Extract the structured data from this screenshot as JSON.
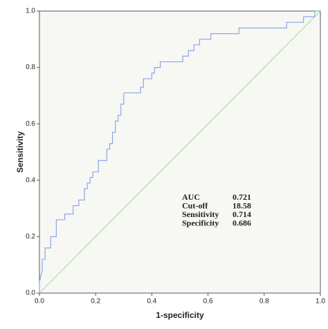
{
  "chart_data": {
    "type": "line",
    "xlabel": "1-specificity",
    "ylabel": "Sensitivity",
    "xlim": [
      0,
      1
    ],
    "ylim": [
      0,
      1
    ],
    "xticks": [
      {
        "value": 0,
        "label": "0.0"
      },
      0.2,
      0.4,
      0.6,
      0.8,
      {
        "value": 1,
        "label": "1.0"
      }
    ],
    "yticks": [
      {
        "value": 0,
        "label": "0.0"
      },
      0.2,
      0.4,
      0.6,
      0.8,
      {
        "value": 1,
        "label": "1.0"
      }
    ],
    "series": [
      {
        "color": "#8aa6e8",
        "x": [
          0,
          0,
          0.01,
          0.01,
          0.02,
          0.02,
          0.04,
          0.04,
          0.06,
          0.06,
          0.09,
          0.09,
          0.12,
          0.12,
          0.14,
          0.14,
          0.16,
          0.16,
          0.17,
          0.17,
          0.18,
          0.18,
          0.19,
          0.19,
          0.21,
          0.21,
          0.24,
          0.24,
          0.25,
          0.25,
          0.26,
          0.26,
          0.27,
          0.27,
          0.28,
          0.28,
          0.29,
          0.29,
          0.3,
          0.3,
          0.36,
          0.36,
          0.37,
          0.37,
          0.4,
          0.4,
          0.41,
          0.41,
          0.43,
          0.43,
          0.51,
          0.51,
          0.53,
          0.53,
          0.55,
          0.55,
          0.57,
          0.57,
          0.61,
          0.61,
          0.71,
          0.71,
          0.88,
          0.88,
          0.94,
          0.94,
          0.98,
          0.98,
          1
        ],
        "values": [
          0,
          0.04,
          0.08,
          0.12,
          0.12,
          0.16,
          0.16,
          0.2,
          0.2,
          0.26,
          0.26,
          0.28,
          0.28,
          0.31,
          0.31,
          0.33,
          0.33,
          0.37,
          0.37,
          0.39,
          0.39,
          0.41,
          0.41,
          0.43,
          0.43,
          0.47,
          0.47,
          0.51,
          0.51,
          0.53,
          0.53,
          0.57,
          0.57,
          0.61,
          0.61,
          0.63,
          0.63,
          0.67,
          0.67,
          0.71,
          0.71,
          0.73,
          0.73,
          0.76,
          0.76,
          0.78,
          0.78,
          0.8,
          0.8,
          0.82,
          0.82,
          0.84,
          0.84,
          0.86,
          0.86,
          0.88,
          0.88,
          0.9,
          0.9,
          0.92,
          0.92,
          0.94,
          0.94,
          0.96,
          0.96,
          0.98,
          0.98,
          1,
          1
        ]
      },
      {
        "color": "#a8e0a0",
        "x": [
          0,
          1
        ],
        "values": [
          0,
          1
        ]
      }
    ],
    "annotation": [
      {
        "label": "AUC",
        "value": 0.721
      },
      {
        "label": "Cut-off",
        "value": 18.58
      },
      {
        "label": "Sensitivity",
        "value": 0.714
      },
      {
        "label": "Specificity",
        "value": 0.686
      }
    ]
  }
}
